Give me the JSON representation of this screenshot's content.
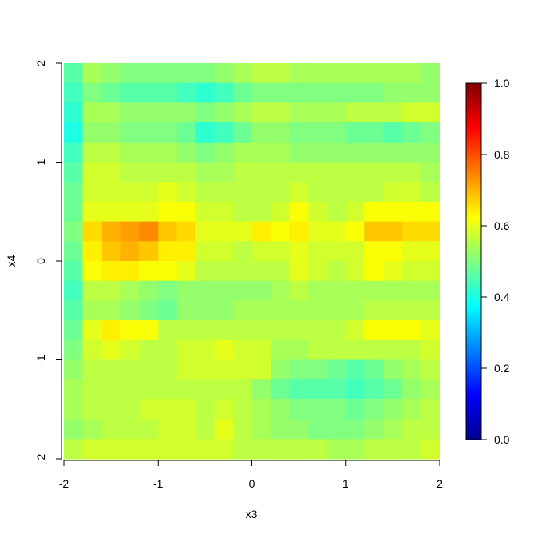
{
  "chart_data": {
    "type": "heatmap",
    "title": "",
    "xlabel": "x3",
    "ylabel": "x4",
    "xlim": [
      -2,
      2
    ],
    "ylim": [
      -2,
      2
    ],
    "x_ticks": [
      "-2",
      "-1",
      "0",
      "1",
      "2"
    ],
    "y_ticks": [
      "-2",
      "-1",
      "0",
      "1",
      "2"
    ],
    "x_tick_values": [
      -2,
      -1,
      0,
      1,
      2
    ],
    "y_tick_values": [
      -2,
      -1,
      0,
      1,
      2
    ],
    "colorbar": {
      "palette": "jet",
      "range": [
        0.0,
        1.0
      ],
      "ticks": [
        "0.0",
        "0.2",
        "0.4",
        "0.6",
        "0.8",
        "1.0"
      ],
      "tick_values": [
        0.0,
        0.2,
        0.4,
        0.6,
        0.8,
        1.0
      ],
      "position": "right"
    },
    "grid_x": [
      -1.9,
      -1.7,
      -1.5,
      -1.3,
      -1.1,
      -0.9,
      -0.7,
      -0.5,
      -0.3,
      -0.1,
      0.1,
      0.3,
      0.5,
      0.7,
      0.9,
      1.1,
      1.3,
      1.5,
      1.7,
      1.9
    ],
    "grid_y": [
      1.9,
      1.7,
      1.5,
      1.3,
      1.1,
      0.9,
      0.7,
      0.5,
      0.3,
      0.1,
      -0.1,
      -0.3,
      -0.5,
      -0.7,
      -0.9,
      -1.1,
      -1.3,
      -1.5,
      -1.7,
      -1.9
    ],
    "z": [
      [
        0.46,
        0.54,
        0.52,
        0.5,
        0.5,
        0.5,
        0.5,
        0.5,
        0.52,
        0.54,
        0.56,
        0.56,
        0.54,
        0.54,
        0.54,
        0.54,
        0.54,
        0.54,
        0.54,
        0.52
      ],
      [
        0.44,
        0.5,
        0.48,
        0.46,
        0.46,
        0.46,
        0.44,
        0.42,
        0.44,
        0.48,
        0.5,
        0.5,
        0.5,
        0.5,
        0.5,
        0.5,
        0.5,
        0.52,
        0.52,
        0.52
      ],
      [
        0.42,
        0.54,
        0.54,
        0.52,
        0.52,
        0.52,
        0.52,
        0.5,
        0.52,
        0.54,
        0.56,
        0.56,
        0.54,
        0.54,
        0.54,
        0.56,
        0.56,
        0.56,
        0.58,
        0.58
      ],
      [
        0.4,
        0.52,
        0.52,
        0.5,
        0.5,
        0.5,
        0.48,
        0.42,
        0.44,
        0.48,
        0.52,
        0.52,
        0.5,
        0.5,
        0.5,
        0.48,
        0.48,
        0.46,
        0.48,
        0.5
      ],
      [
        0.44,
        0.56,
        0.56,
        0.54,
        0.54,
        0.54,
        0.52,
        0.5,
        0.52,
        0.54,
        0.54,
        0.54,
        0.52,
        0.52,
        0.52,
        0.52,
        0.52,
        0.52,
        0.52,
        0.52
      ],
      [
        0.46,
        0.58,
        0.58,
        0.56,
        0.56,
        0.56,
        0.56,
        0.54,
        0.54,
        0.56,
        0.56,
        0.56,
        0.56,
        0.56,
        0.56,
        0.56,
        0.56,
        0.56,
        0.56,
        0.54
      ],
      [
        0.48,
        0.58,
        0.58,
        0.58,
        0.58,
        0.6,
        0.58,
        0.56,
        0.56,
        0.56,
        0.56,
        0.56,
        0.58,
        0.56,
        0.56,
        0.56,
        0.56,
        0.58,
        0.58,
        0.56
      ],
      [
        0.48,
        0.6,
        0.6,
        0.6,
        0.6,
        0.62,
        0.62,
        0.58,
        0.58,
        0.56,
        0.56,
        0.58,
        0.62,
        0.58,
        0.56,
        0.58,
        0.62,
        0.62,
        0.62,
        0.62
      ],
      [
        0.5,
        0.66,
        0.7,
        0.72,
        0.74,
        0.68,
        0.66,
        0.6,
        0.6,
        0.6,
        0.64,
        0.62,
        0.64,
        0.6,
        0.6,
        0.62,
        0.68,
        0.68,
        0.66,
        0.66
      ],
      [
        0.48,
        0.64,
        0.68,
        0.7,
        0.68,
        0.64,
        0.64,
        0.58,
        0.58,
        0.56,
        0.58,
        0.58,
        0.6,
        0.58,
        0.58,
        0.58,
        0.62,
        0.62,
        0.6,
        0.6
      ],
      [
        0.46,
        0.62,
        0.64,
        0.64,
        0.62,
        0.62,
        0.6,
        0.56,
        0.56,
        0.56,
        0.56,
        0.56,
        0.6,
        0.58,
        0.56,
        0.58,
        0.62,
        0.6,
        0.58,
        0.58
      ],
      [
        0.44,
        0.56,
        0.56,
        0.54,
        0.52,
        0.5,
        0.52,
        0.52,
        0.52,
        0.52,
        0.52,
        0.54,
        0.56,
        0.54,
        0.54,
        0.54,
        0.54,
        0.54,
        0.54,
        0.54
      ],
      [
        0.46,
        0.54,
        0.54,
        0.52,
        0.5,
        0.48,
        0.52,
        0.52,
        0.52,
        0.54,
        0.54,
        0.54,
        0.54,
        0.54,
        0.54,
        0.54,
        0.56,
        0.56,
        0.56,
        0.56
      ],
      [
        0.48,
        0.6,
        0.64,
        0.62,
        0.62,
        0.56,
        0.56,
        0.56,
        0.56,
        0.56,
        0.56,
        0.56,
        0.56,
        0.56,
        0.56,
        0.58,
        0.62,
        0.62,
        0.62,
        0.6
      ],
      [
        0.5,
        0.58,
        0.6,
        0.58,
        0.56,
        0.56,
        0.58,
        0.58,
        0.6,
        0.58,
        0.58,
        0.54,
        0.54,
        0.56,
        0.56,
        0.56,
        0.56,
        0.56,
        0.56,
        0.58
      ],
      [
        0.52,
        0.56,
        0.56,
        0.56,
        0.56,
        0.56,
        0.58,
        0.58,
        0.58,
        0.58,
        0.58,
        0.52,
        0.5,
        0.5,
        0.48,
        0.46,
        0.48,
        0.52,
        0.54,
        0.56
      ],
      [
        0.54,
        0.56,
        0.56,
        0.56,
        0.56,
        0.56,
        0.56,
        0.56,
        0.56,
        0.56,
        0.52,
        0.48,
        0.46,
        0.46,
        0.46,
        0.44,
        0.46,
        0.48,
        0.52,
        0.54
      ],
      [
        0.54,
        0.56,
        0.56,
        0.56,
        0.58,
        0.58,
        0.58,
        0.56,
        0.58,
        0.56,
        0.54,
        0.52,
        0.5,
        0.5,
        0.5,
        0.48,
        0.5,
        0.52,
        0.54,
        0.56
      ],
      [
        0.52,
        0.54,
        0.56,
        0.56,
        0.56,
        0.58,
        0.58,
        0.56,
        0.6,
        0.56,
        0.54,
        0.52,
        0.52,
        0.5,
        0.5,
        0.5,
        0.52,
        0.54,
        0.56,
        0.56
      ],
      [
        0.56,
        0.58,
        0.58,
        0.58,
        0.58,
        0.58,
        0.58,
        0.58,
        0.58,
        0.56,
        0.56,
        0.56,
        0.56,
        0.56,
        0.54,
        0.54,
        0.56,
        0.56,
        0.56,
        0.58
      ]
    ]
  }
}
